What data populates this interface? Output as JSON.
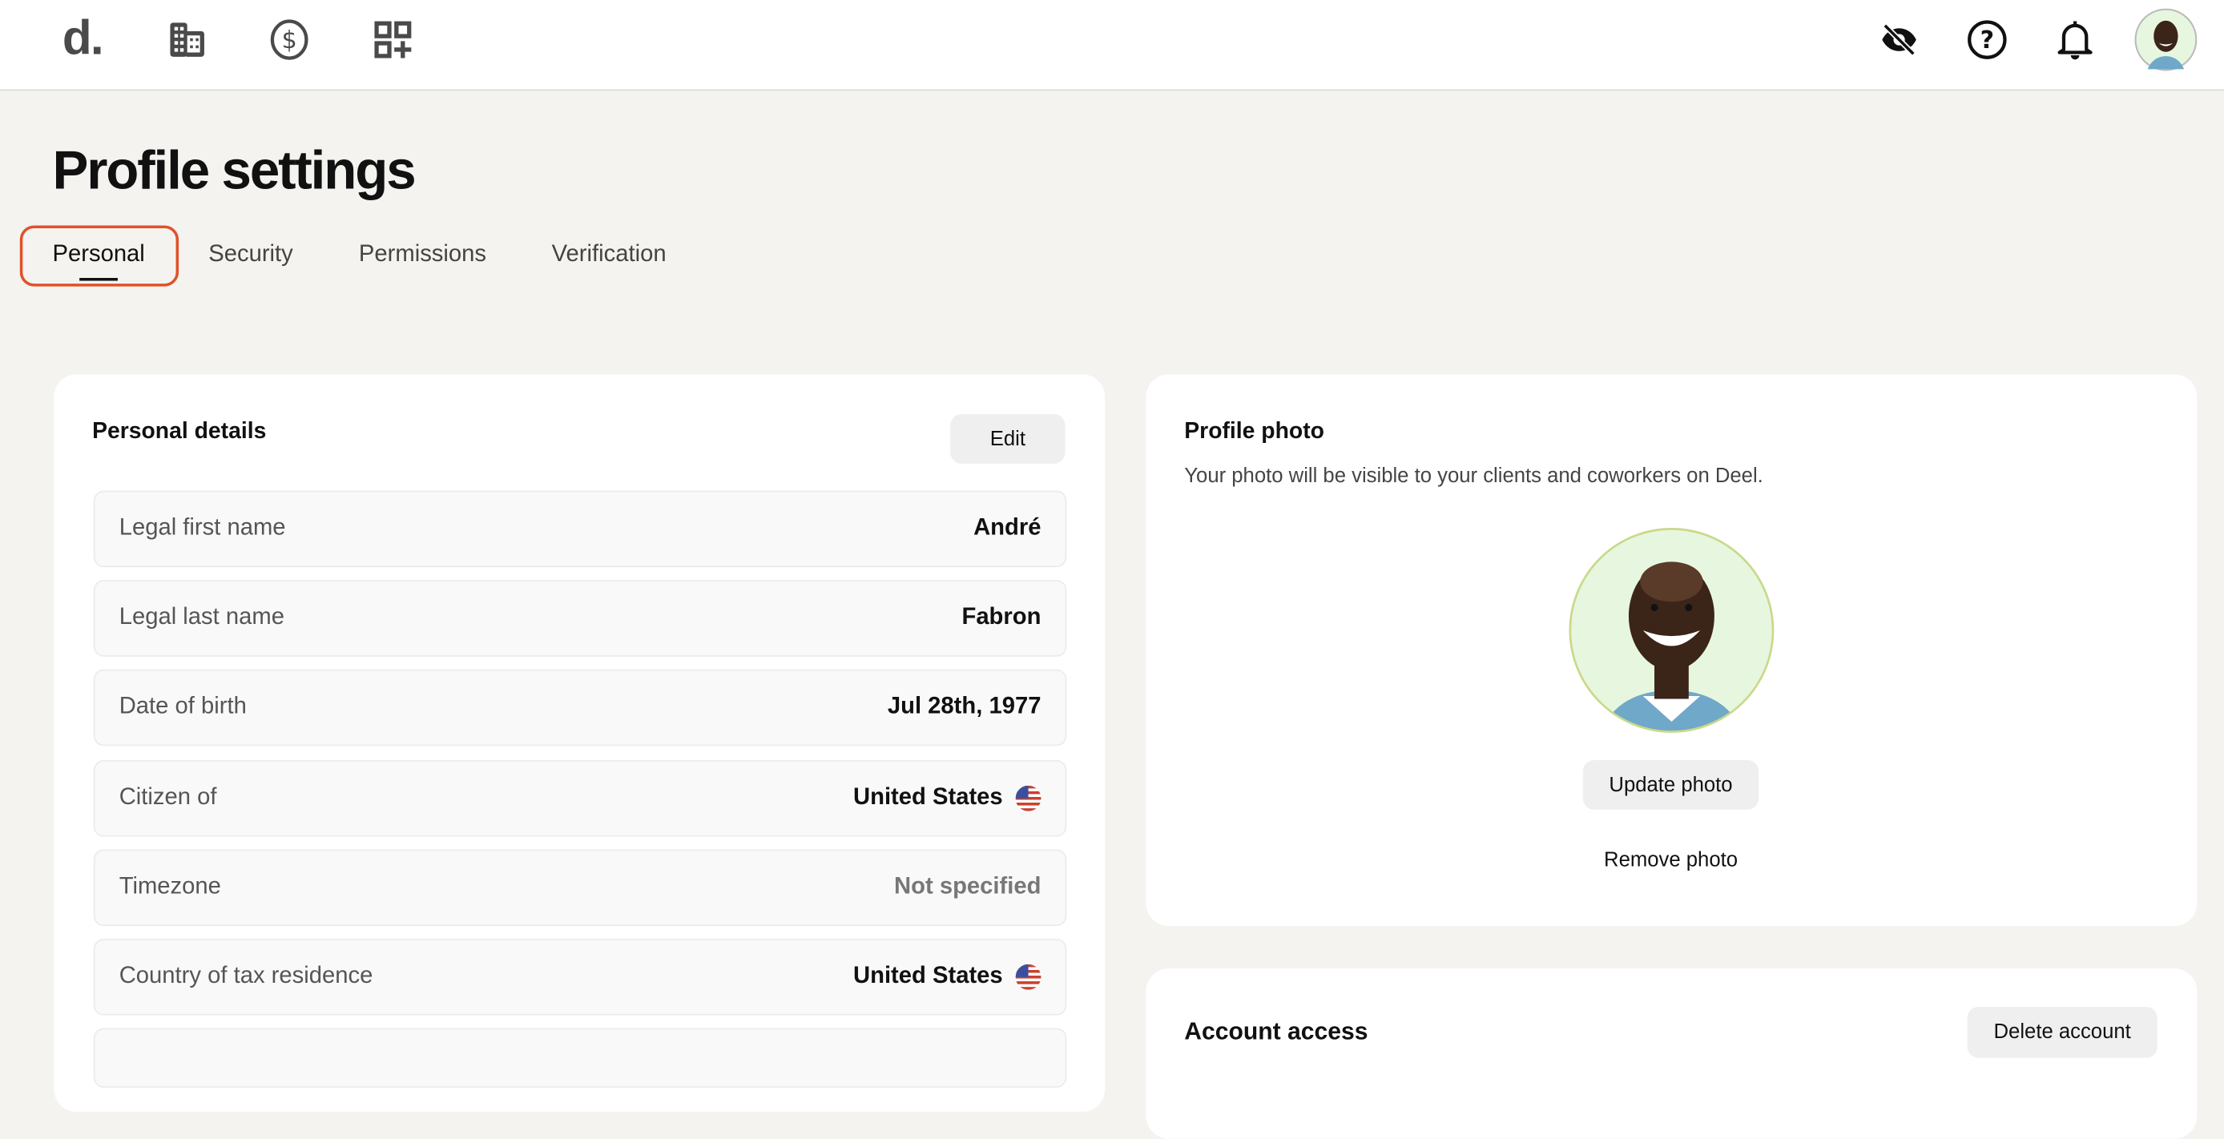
{
  "topbar": {
    "logo": "d.",
    "left_icons": [
      "building-icon",
      "dollar-circle-icon",
      "apps-add-icon"
    ],
    "right_icons": [
      "eye-off-icon",
      "help-icon",
      "bell-icon",
      "avatar"
    ]
  },
  "page": {
    "title": "Profile settings",
    "tabs": [
      {
        "label": "Personal",
        "active": true
      },
      {
        "label": "Security"
      },
      {
        "label": "Permissions"
      },
      {
        "label": "Verification"
      }
    ]
  },
  "personal_details": {
    "title": "Personal details",
    "edit_label": "Edit",
    "rows": [
      {
        "label": "Legal first name",
        "value": "André"
      },
      {
        "label": "Legal last name",
        "value": "Fabron"
      },
      {
        "label": "Date of birth",
        "value": "Jul 28th, 1977"
      },
      {
        "label": "Citizen of",
        "value": "United States",
        "flag": "us-flag-icon"
      },
      {
        "label": "Timezone",
        "value": "Not specified"
      },
      {
        "label": "Country of tax residence",
        "value": "United States",
        "flag": "us-flag-icon"
      }
    ]
  },
  "profile_photo": {
    "title": "Profile photo",
    "subtitle": "Your photo will be visible to your clients and coworkers on Deel.",
    "update_label": "Update photo",
    "remove_label": "Remove photo"
  },
  "account_access": {
    "title": "Account access",
    "delete_label": "Delete account"
  },
  "colors": {
    "accent": "#e0522a",
    "background": "#f4f3f0",
    "photo_bg": "#e7f6df"
  }
}
